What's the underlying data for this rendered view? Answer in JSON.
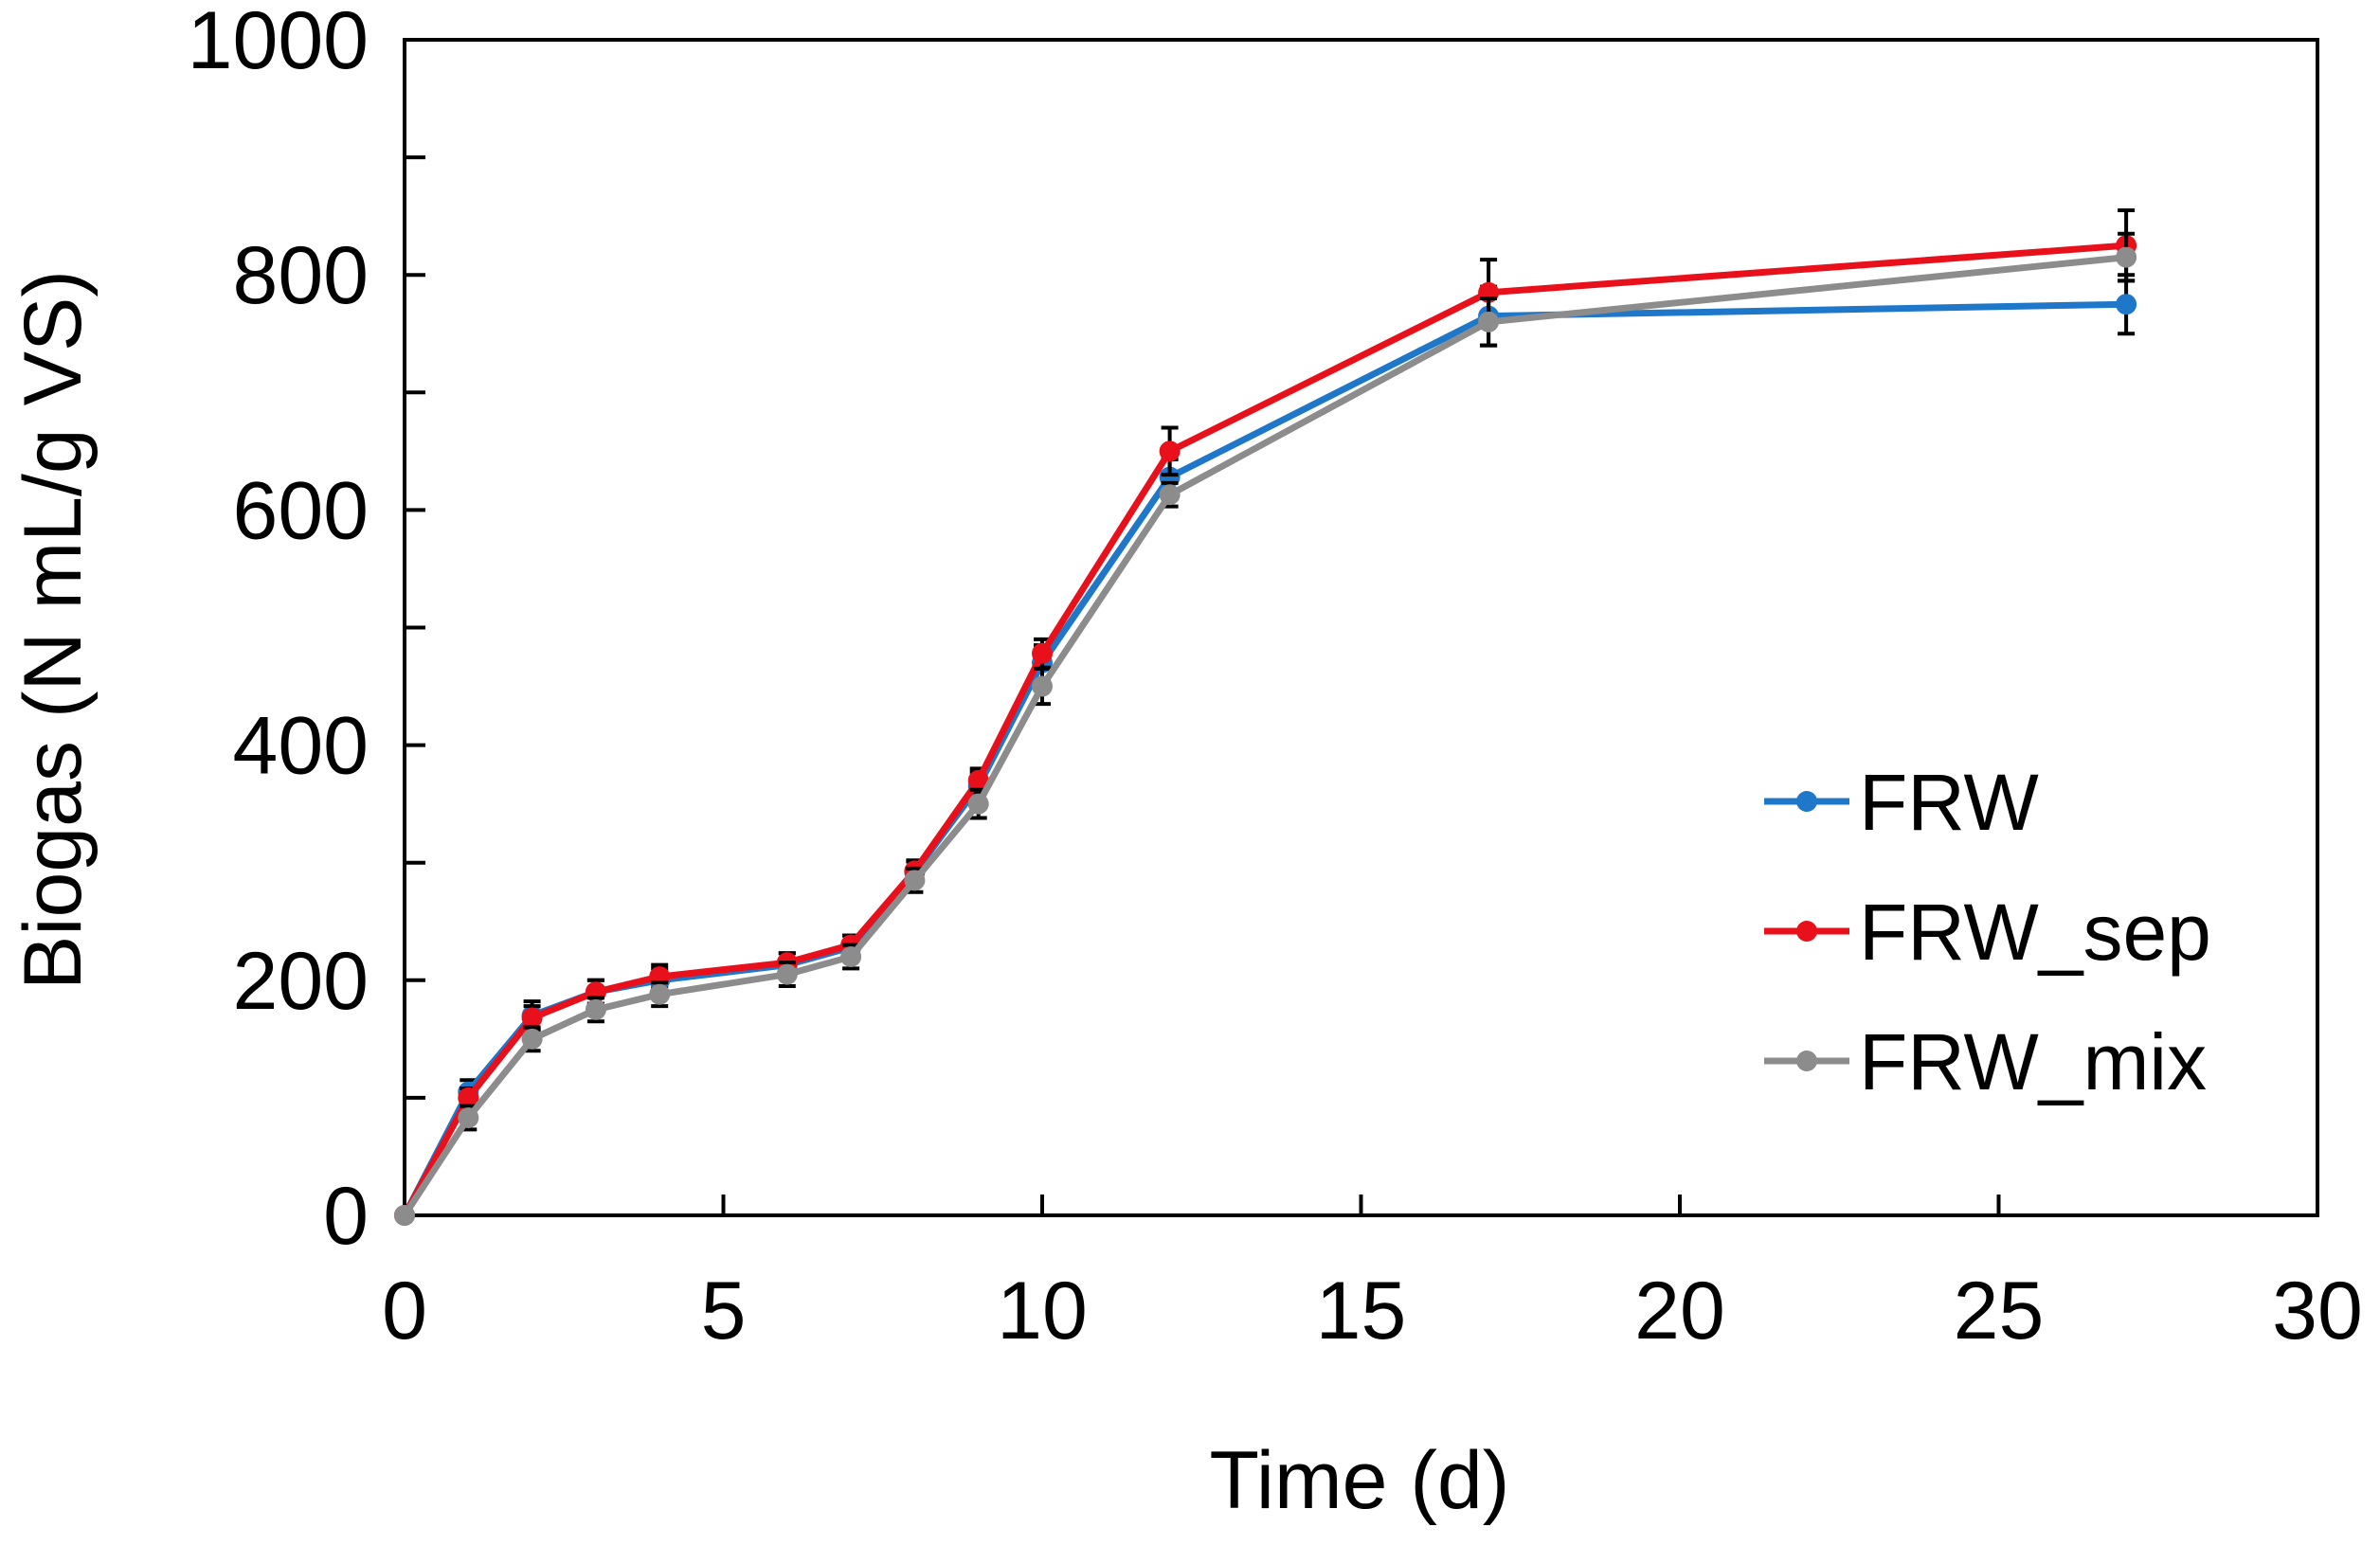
{
  "chart_data": {
    "type": "line",
    "title": "",
    "xlabel": "Time (d)",
    "ylabel": "Biogas (N mL/g VS)",
    "xlim": [
      0,
      30
    ],
    "ylim": [
      0,
      1000
    ],
    "xticks": [
      0,
      5,
      10,
      15,
      20,
      25,
      30
    ],
    "yticks": [
      0,
      200,
      400,
      600,
      800,
      1000
    ],
    "grid": false,
    "legend_position": "right",
    "x": [
      0,
      1,
      2,
      3,
      4,
      6,
      7,
      8,
      9,
      10,
      12,
      17,
      27
    ],
    "series": [
      {
        "name": "FRW",
        "color": "#1f77c9",
        "values": [
          0,
          105,
          170,
          190,
          200,
          213,
          228,
          292,
          365,
          470,
          628,
          765,
          775
        ],
        "errors": [
          0,
          10,
          12,
          10,
          10,
          10,
          10,
          10,
          12,
          15,
          15,
          25,
          25
        ]
      },
      {
        "name": "FRW_sep",
        "color": "#e8101a",
        "values": [
          0,
          100,
          168,
          190,
          203,
          215,
          230,
          293,
          370,
          478,
          650,
          785,
          825
        ],
        "errors": [
          0,
          8,
          10,
          10,
          10,
          8,
          8,
          8,
          10,
          12,
          20,
          28,
          30
        ]
      },
      {
        "name": "FRW_mix",
        "color": "#8c8c8c",
        "values": [
          0,
          83,
          150,
          175,
          188,
          205,
          220,
          285,
          350,
          450,
          613,
          760,
          815
        ],
        "errors": [
          0,
          10,
          10,
          10,
          10,
          10,
          10,
          10,
          12,
          15,
          10,
          20,
          20
        ]
      }
    ]
  }
}
